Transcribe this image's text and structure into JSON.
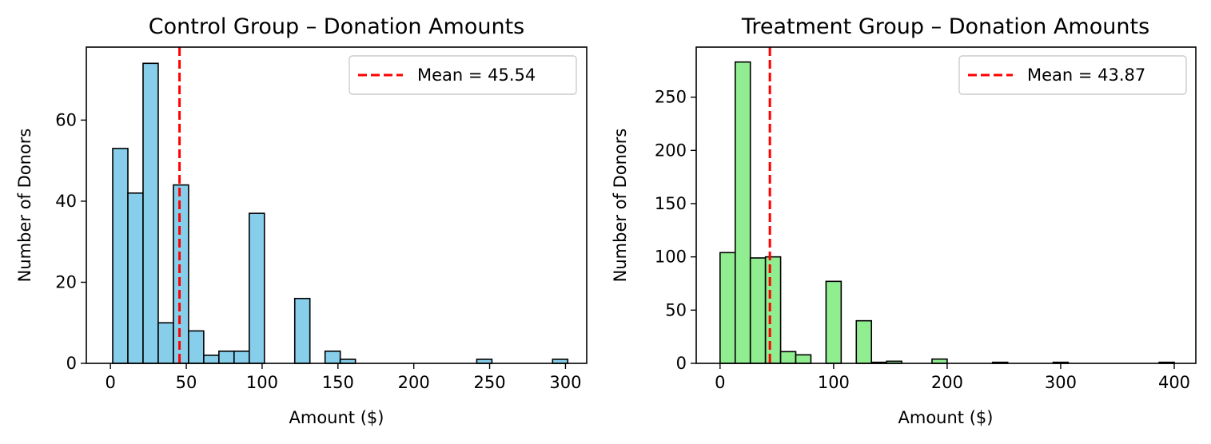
{
  "chart_data": [
    {
      "type": "bar",
      "title": "Control Group – Donation Amounts",
      "xlabel": "Amount ($)",
      "ylabel": "Number of Donors",
      "xlim": [
        -15.9,
        314
      ],
      "ylim": [
        0,
        78
      ],
      "xticks": [
        0,
        50,
        100,
        150,
        200,
        250,
        300
      ],
      "yticks": [
        0,
        20,
        40,
        60
      ],
      "bar_color": "#87ceeb",
      "bin_width": 10,
      "bins_start": [
        1.5,
        11.5,
        21.5,
        31.5,
        41.5,
        51.5,
        61.5,
        71.5,
        81.5,
        91.5,
        101.5,
        111.5,
        121.5,
        131.5,
        141.5,
        151.5,
        161.5,
        171.5,
        181.5,
        191.5,
        201.5,
        211.5,
        221.5,
        231.5,
        241.5,
        251.5,
        261.5,
        271.5,
        281.5,
        291.5
      ],
      "values": [
        53,
        42,
        74,
        10,
        44,
        8,
        2,
        3,
        3,
        37,
        0,
        0,
        16,
        0,
        3,
        1,
        0,
        0,
        0,
        0,
        0,
        0,
        0,
        0,
        1,
        0,
        0,
        0,
        0,
        1
      ],
      "mean_line": {
        "x": 45.54,
        "color": "#ff0000",
        "label": "Mean = 45.54"
      },
      "legend": "top-right",
      "grid": false
    },
    {
      "type": "bar",
      "title": "Treatment Group – Donation Amounts",
      "xlabel": "Amount ($)",
      "ylabel": "Number of Donors",
      "xlim": [
        -21,
        419
      ],
      "ylim": [
        0,
        297
      ],
      "xticks": [
        0,
        100,
        200,
        300,
        400
      ],
      "yticks": [
        0,
        50,
        100,
        150,
        200,
        250
      ],
      "bar_color": "#90ee90",
      "bin_width": 13.33,
      "bins_start": [
        0,
        13.33,
        26.67,
        40,
        53.33,
        66.67,
        80,
        93.33,
        106.67,
        120,
        133.33,
        146.67,
        160,
        173.33,
        186.67,
        200,
        213.33,
        226.67,
        240,
        253.33,
        266.67,
        280,
        293.33,
        306.67,
        320,
        333.33,
        346.67,
        360,
        373.33,
        386.67
      ],
      "values": [
        104,
        283,
        99,
        100,
        11,
        8,
        0,
        77,
        0,
        40,
        1,
        2,
        0,
        0,
        4,
        0,
        0,
        0,
        1,
        0,
        0,
        0,
        1,
        0,
        0,
        0,
        0,
        0,
        0,
        1
      ],
      "mean_line": {
        "x": 43.87,
        "color": "#ff0000",
        "label": "Mean = 43.87"
      },
      "legend": "top-right",
      "grid": false
    }
  ]
}
